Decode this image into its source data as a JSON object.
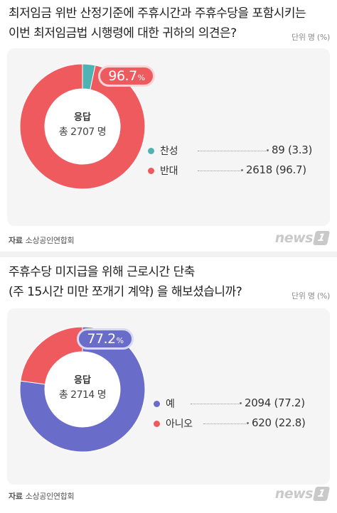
{
  "charts": [
    {
      "title_line1": "최저임금 위반 산정기준에 주휴시간과 주휴수당을 포함시키는",
      "title_line2": "이번 최저임금법 시행령에 대한 귀하의 의견은?",
      "unit": "단위 명 (%)",
      "center_label": "응답",
      "center_total": "총 2707 명",
      "callout_value": "96.7",
      "callout_unit": "%",
      "source_label": "자료",
      "source_name": "소상공인연합회",
      "logo_text": "news",
      "logo_mark": "1",
      "legend": [
        {
          "label": "찬성",
          "value_text": "89 (3.3)"
        },
        {
          "label": "반대",
          "value_text": "2618 (96.7)"
        }
      ]
    },
    {
      "title_line1": "주휴수당 미지급을 위해 근로시간 단축",
      "title_line2": "(주 15시간 미만 쪼개기 계약) 을 해보셨습니까?",
      "unit": "단위 명 (%)",
      "center_label": "응답",
      "center_total": "총 2714 명",
      "callout_value": "77.2",
      "callout_unit": "%",
      "source_label": "자료",
      "source_name": "소상공인연합회",
      "logo_text": "news",
      "logo_mark": "1",
      "legend": [
        {
          "label": "예",
          "value_text": "2094 (77.2)"
        },
        {
          "label": "아니오",
          "value_text": "620 (22.8)"
        }
      ]
    }
  ],
  "chart_data": [
    {
      "type": "pie",
      "title": "최저임금 위반 산정기준에 주휴시간과 주휴수당을 포함시키는 이번 최저임금법 시행령에 대한 귀하의 의견은?",
      "total": 2707,
      "unit": "명 (%)",
      "categories": [
        "찬성",
        "반대"
      ],
      "values": [
        89,
        2618
      ],
      "percent": [
        3.3,
        96.7
      ],
      "colors": [
        "#4fb3b3",
        "#ef5a5f"
      ]
    },
    {
      "type": "pie",
      "title": "주휴수당 미지급을 위해 근로시간 단축 (주 15시간 미만 쪼개기 계약) 을 해보셨습니까?",
      "total": 2714,
      "unit": "명 (%)",
      "categories": [
        "예",
        "아니오"
      ],
      "values": [
        2094,
        620
      ],
      "percent": [
        77.2,
        22.8
      ],
      "colors": [
        "#6a6cc9",
        "#ef5a5f"
      ]
    }
  ]
}
